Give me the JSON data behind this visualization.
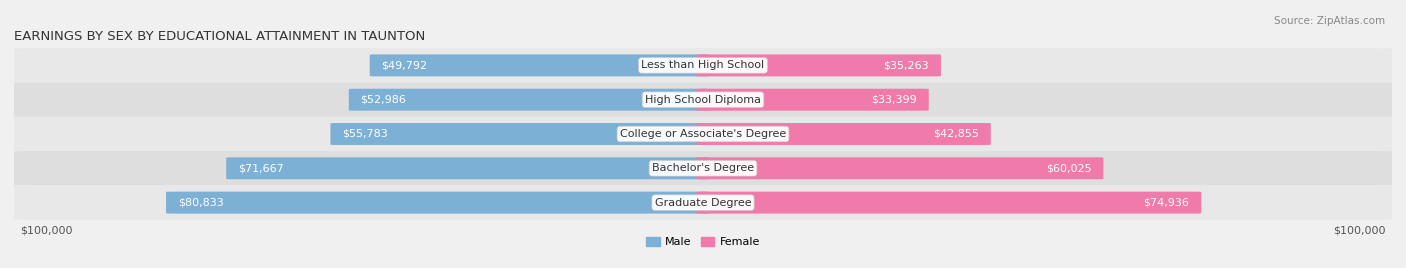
{
  "title": "EARNINGS BY SEX BY EDUCATIONAL ATTAINMENT IN TAUNTON",
  "source": "Source: ZipAtlas.com",
  "categories": [
    "Less than High School",
    "High School Diploma",
    "College or Associate's Degree",
    "Bachelor's Degree",
    "Graduate Degree"
  ],
  "male_values": [
    49792,
    52986,
    55783,
    71667,
    80833
  ],
  "female_values": [
    35263,
    33399,
    42855,
    60025,
    74936
  ],
  "male_color": "#7db0d5",
  "female_color": "#f07aaa",
  "male_color_dark": "#5a96c3",
  "female_color_dark": "#e85898",
  "max_value": 100000,
  "bar_height": 0.62,
  "row_bg_color_odd": "#e8e8e8",
  "row_bg_color_even": "#dedede",
  "label_color_dark": "#444444",
  "label_color_light": "#ffffff",
  "xlabel_left": "$100,000",
  "xlabel_right": "$100,000",
  "legend_male": "Male",
  "legend_female": "Female",
  "title_fontsize": 9.5,
  "source_fontsize": 7.5,
  "tick_fontsize": 8,
  "label_fontsize": 8,
  "category_fontsize": 8
}
